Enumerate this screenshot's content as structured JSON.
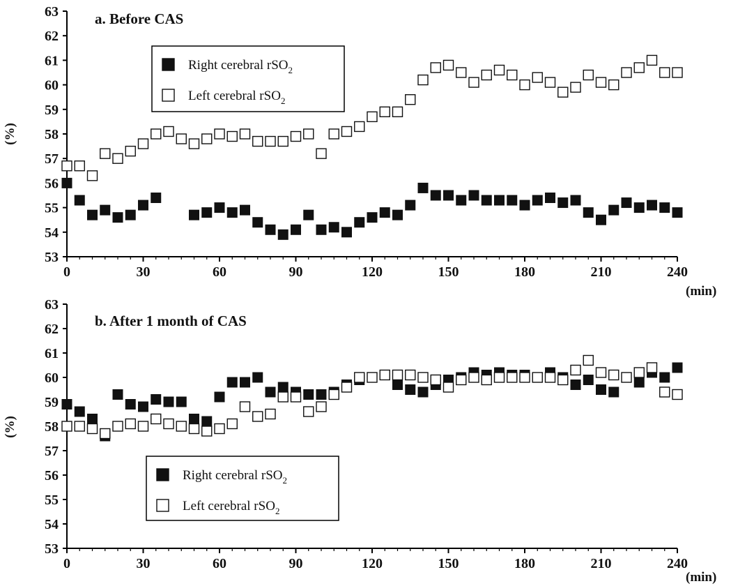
{
  "chart_data": [
    {
      "type": "scatter",
      "title": "a. Before CAS",
      "xlabel": "(min)",
      "ylabel": "(%)",
      "xlim": [
        0,
        240
      ],
      "ylim": [
        53,
        63
      ],
      "xticks": [
        0,
        30,
        60,
        90,
        120,
        150,
        180,
        210,
        240
      ],
      "yticks": [
        53,
        54,
        55,
        56,
        57,
        58,
        59,
        60,
        61,
        62,
        63
      ],
      "legend_position": "top-left",
      "series": [
        {
          "name": "Right cerebral rSO2",
          "marker": "filled-square",
          "points": [
            [
              0,
              56.0
            ],
            [
              5,
              55.3
            ],
            [
              10,
              54.7
            ],
            [
              15,
              54.9
            ],
            [
              20,
              54.6
            ],
            [
              25,
              54.7
            ],
            [
              30,
              55.1
            ],
            [
              35,
              55.4
            ],
            [
              50,
              54.7
            ],
            [
              55,
              54.8
            ],
            [
              60,
              55.0
            ],
            [
              65,
              54.8
            ],
            [
              70,
              54.9
            ],
            [
              75,
              54.4
            ],
            [
              80,
              54.1
            ],
            [
              85,
              53.9
            ],
            [
              90,
              54.1
            ],
            [
              95,
              54.7
            ],
            [
              100,
              54.1
            ],
            [
              105,
              54.2
            ],
            [
              110,
              54.0
            ],
            [
              115,
              54.4
            ],
            [
              120,
              54.6
            ],
            [
              125,
              54.8
            ],
            [
              130,
              54.7
            ],
            [
              135,
              55.1
            ],
            [
              140,
              55.8
            ],
            [
              145,
              55.5
            ],
            [
              150,
              55.5
            ],
            [
              155,
              55.3
            ],
            [
              160,
              55.5
            ],
            [
              165,
              55.3
            ],
            [
              170,
              55.3
            ],
            [
              175,
              55.3
            ],
            [
              180,
              55.1
            ],
            [
              185,
              55.3
            ],
            [
              190,
              55.4
            ],
            [
              195,
              55.2
            ],
            [
              200,
              55.3
            ],
            [
              205,
              54.8
            ],
            [
              210,
              54.5
            ],
            [
              215,
              54.9
            ],
            [
              220,
              55.2
            ],
            [
              225,
              55.0
            ],
            [
              230,
              55.1
            ],
            [
              235,
              55.0
            ],
            [
              240,
              54.8
            ]
          ]
        },
        {
          "name": "Left cerebral rSO2",
          "marker": "open-square",
          "points": [
            [
              0,
              56.7
            ],
            [
              5,
              56.7
            ],
            [
              10,
              56.3
            ],
            [
              15,
              57.2
            ],
            [
              20,
              57.0
            ],
            [
              25,
              57.3
            ],
            [
              30,
              57.6
            ],
            [
              35,
              58.0
            ],
            [
              40,
              58.1
            ],
            [
              45,
              57.8
            ],
            [
              50,
              57.6
            ],
            [
              55,
              57.8
            ],
            [
              60,
              58.0
            ],
            [
              65,
              57.9
            ],
            [
              70,
              58.0
            ],
            [
              75,
              57.7
            ],
            [
              80,
              57.7
            ],
            [
              85,
              57.7
            ],
            [
              90,
              57.9
            ],
            [
              95,
              58.0
            ],
            [
              100,
              57.2
            ],
            [
              105,
              58.0
            ],
            [
              110,
              58.1
            ],
            [
              115,
              58.3
            ],
            [
              120,
              58.7
            ],
            [
              125,
              58.9
            ],
            [
              130,
              58.9
            ],
            [
              135,
              59.4
            ],
            [
              140,
              60.2
            ],
            [
              145,
              60.7
            ],
            [
              150,
              60.8
            ],
            [
              155,
              60.5
            ],
            [
              160,
              60.1
            ],
            [
              165,
              60.4
            ],
            [
              170,
              60.6
            ],
            [
              175,
              60.4
            ],
            [
              180,
              60.0
            ],
            [
              185,
              60.3
            ],
            [
              190,
              60.1
            ],
            [
              195,
              59.7
            ],
            [
              200,
              59.9
            ],
            [
              205,
              60.4
            ],
            [
              210,
              60.1
            ],
            [
              215,
              60.0
            ],
            [
              220,
              60.5
            ],
            [
              225,
              60.7
            ],
            [
              230,
              61.0
            ],
            [
              235,
              60.5
            ],
            [
              240,
              60.5
            ]
          ]
        }
      ],
      "legend": [
        {
          "marker": "filled-square",
          "label": "Right cerebral rSO",
          "sub": "2"
        },
        {
          "marker": "open-square",
          "label": "Left cerebral rSO",
          "sub": "2"
        }
      ]
    },
    {
      "type": "scatter",
      "title": "b. After 1 month  of CAS",
      "xlabel": "(min)",
      "ylabel": "(%)",
      "xlim": [
        0,
        240
      ],
      "ylim": [
        53,
        63
      ],
      "xticks": [
        0,
        30,
        60,
        90,
        120,
        150,
        180,
        210,
        240
      ],
      "yticks": [
        53,
        54,
        55,
        56,
        57,
        58,
        59,
        60,
        61,
        62,
        63
      ],
      "legend_position": "bottom-left",
      "series": [
        {
          "name": "Right cerebral rSO2",
          "marker": "filled-square",
          "points": [
            [
              0,
              58.9
            ],
            [
              5,
              58.6
            ],
            [
              10,
              58.3
            ],
            [
              15,
              57.6
            ],
            [
              20,
              59.3
            ],
            [
              25,
              58.9
            ],
            [
              30,
              58.8
            ],
            [
              35,
              59.1
            ],
            [
              40,
              59.0
            ],
            [
              45,
              59.0
            ],
            [
              50,
              58.3
            ],
            [
              55,
              58.2
            ],
            [
              60,
              59.2
            ],
            [
              65,
              59.8
            ],
            [
              70,
              59.8
            ],
            [
              75,
              60.0
            ],
            [
              80,
              59.4
            ],
            [
              85,
              59.6
            ],
            [
              90,
              59.4
            ],
            [
              95,
              59.3
            ],
            [
              100,
              59.3
            ],
            [
              105,
              59.4
            ],
            [
              110,
              59.7
            ],
            [
              115,
              59.9
            ],
            [
              120,
              60.0
            ],
            [
              125,
              60.1
            ],
            [
              130,
              59.7
            ],
            [
              135,
              59.5
            ],
            [
              140,
              59.4
            ],
            [
              145,
              59.7
            ],
            [
              150,
              59.9
            ],
            [
              155,
              60.0
            ],
            [
              160,
              60.2
            ],
            [
              165,
              60.1
            ],
            [
              170,
              60.2
            ],
            [
              175,
              60.1
            ],
            [
              180,
              60.1
            ],
            [
              185,
              60.0
            ],
            [
              190,
              60.2
            ],
            [
              195,
              60.0
            ],
            [
              200,
              59.7
            ],
            [
              205,
              59.9
            ],
            [
              210,
              59.5
            ],
            [
              215,
              59.4
            ],
            [
              220,
              60.0
            ],
            [
              225,
              59.8
            ],
            [
              230,
              60.2
            ],
            [
              235,
              60.0
            ],
            [
              240,
              60.4
            ]
          ]
        },
        {
          "name": "Left cerebral rSO2",
          "marker": "open-square",
          "points": [
            [
              0,
              58.0
            ],
            [
              5,
              58.0
            ],
            [
              10,
              57.9
            ],
            [
              15,
              57.7
            ],
            [
              20,
              58.0
            ],
            [
              25,
              58.1
            ],
            [
              30,
              58.0
            ],
            [
              35,
              58.3
            ],
            [
              40,
              58.1
            ],
            [
              45,
              58.0
            ],
            [
              50,
              57.9
            ],
            [
              55,
              57.8
            ],
            [
              60,
              57.9
            ],
            [
              65,
              58.1
            ],
            [
              70,
              58.8
            ],
            [
              75,
              58.4
            ],
            [
              80,
              58.5
            ],
            [
              85,
              59.2
            ],
            [
              90,
              59.2
            ],
            [
              95,
              58.6
            ],
            [
              100,
              58.8
            ],
            [
              105,
              59.3
            ],
            [
              110,
              59.6
            ],
            [
              115,
              60.0
            ],
            [
              120,
              60.0
            ],
            [
              125,
              60.1
            ],
            [
              130,
              60.1
            ],
            [
              135,
              60.1
            ],
            [
              140,
              60.0
            ],
            [
              145,
              59.9
            ],
            [
              150,
              59.6
            ],
            [
              155,
              59.9
            ],
            [
              160,
              60.0
            ],
            [
              165,
              59.9
            ],
            [
              170,
              60.0
            ],
            [
              175,
              60.0
            ],
            [
              180,
              60.0
            ],
            [
              185,
              60.0
            ],
            [
              190,
              60.0
            ],
            [
              195,
              59.9
            ],
            [
              200,
              60.3
            ],
            [
              205,
              60.7
            ],
            [
              210,
              60.2
            ],
            [
              215,
              60.1
            ],
            [
              220,
              60.0
            ],
            [
              225,
              60.2
            ],
            [
              230,
              60.4
            ],
            [
              235,
              59.4
            ],
            [
              240,
              59.3
            ]
          ]
        }
      ],
      "legend": [
        {
          "marker": "filled-square",
          "label": "Right cerebral rSO",
          "sub": "2"
        },
        {
          "marker": "open-square",
          "label": "Left cerebral rSO",
          "sub": "2"
        }
      ]
    }
  ]
}
